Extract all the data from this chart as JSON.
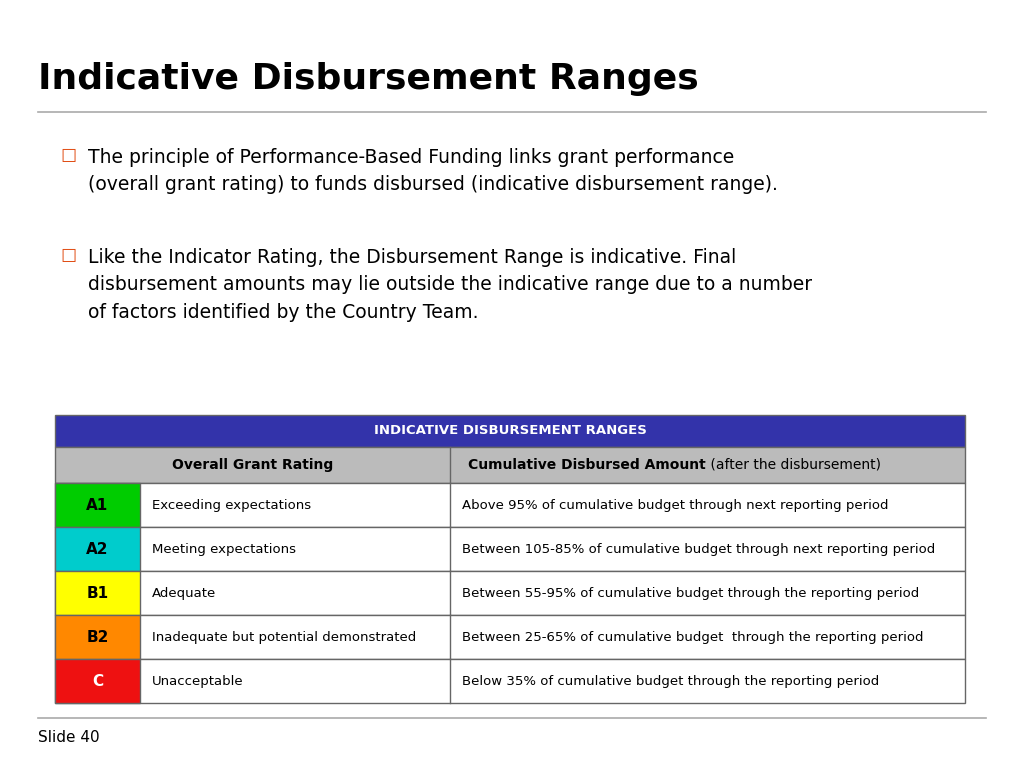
{
  "title": "Indicative Disbursement Ranges",
  "title_fontsize": 26,
  "title_fontweight": "bold",
  "title_color": "#000000",
  "background_color": "#ffffff",
  "bullet_color": "#e04a10",
  "bullet1_line1": "The principle of Performance-Based Funding links grant performance",
  "bullet1_line2": "(overall grant rating) to funds disbursed (indicative disbursement range).",
  "bullet2_line1": "Like the Indicator Rating, the Disbursement Range is indicative. Final",
  "bullet2_line2": "disbursement amounts may lie outside the indicative range due to a number",
  "bullet2_line3": "of factors identified by the Country Team.",
  "table_header_bg": "#3333aa",
  "table_header_text": "#ffffff",
  "table_header_label": "INDICATIVE DISBURSEMENT RANGES",
  "table_subheader_bg": "#bbbbbb",
  "table_col1_header": "Overall Grant Rating",
  "table_col2_header_bold": "Cumulative Disbursed Amount",
  "table_col2_header_normal": " (after the disbursement)",
  "table_border_color": "#666666",
  "table_row_bg": "#ffffff",
  "rows": [
    {
      "rating": "A1",
      "rating_bg": "#00cc00",
      "rating_text": "#000000",
      "description": "Exceeding expectations",
      "disbursement": "Above 95% of cumulative budget through next reporting period"
    },
    {
      "rating": "A2",
      "rating_bg": "#00cccc",
      "rating_text": "#000000",
      "description": "Meeting expectations",
      "disbursement": "Between 105-85% of cumulative budget through next reporting period"
    },
    {
      "rating": "B1",
      "rating_bg": "#ffff00",
      "rating_text": "#000000",
      "description": "Adequate",
      "disbursement": "Between 55-95% of cumulative budget through the reporting period"
    },
    {
      "rating": "B2",
      "rating_bg": "#ff8800",
      "rating_text": "#000000",
      "description": "Inadequate but potential demonstrated",
      "disbursement": "Between 25-65% of cumulative budget  through the reporting period"
    },
    {
      "rating": "C",
      "rating_bg": "#ee1111",
      "rating_text": "#ffffff",
      "description": "Unacceptable",
      "disbursement": "Below 35% of cumulative budget through the reporting period"
    }
  ],
  "footer_text": "Slide 40",
  "separator_color": "#aaaaaa"
}
